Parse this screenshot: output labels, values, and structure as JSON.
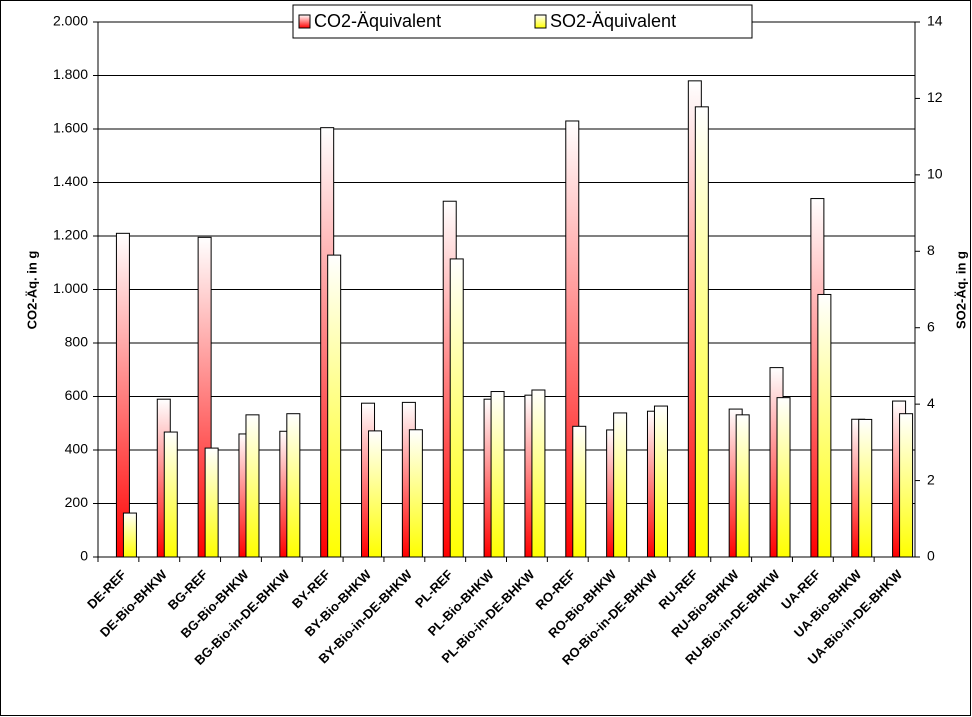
{
  "chart_data": {
    "type": "bar",
    "categories": [
      "DE-REF",
      "DE-Bio-BHKW",
      "BG-REF",
      "BG-Bio-BHKW",
      "BG-Bio-in-DE-BHKW",
      "BY-REF",
      "BY-Bio-BHKW",
      "BY-Bio-in-DE-BHKW",
      "PL-REF",
      "PL-Bio-BHKW",
      "PL-Bio-in-DE-BHKW",
      "RO-REF",
      "RO-Bio-BHKW",
      "RO-Bio-in-DE-BHKW",
      "RU-REF",
      "RU-Bio-BHKW",
      "RU-Bio-in-DE-BHKW",
      "UA-REF",
      "UA-Bio-BHKW",
      "UA-Bio-in-DE-BHKW"
    ],
    "series": [
      {
        "name": "CO2-Äquivalent",
        "color": "#ff0000",
        "values": [
          1210,
          590,
          1195,
          460,
          470,
          1605,
          575,
          578,
          1330,
          590,
          605,
          1630,
          475,
          545,
          1780,
          553,
          708,
          1340,
          515,
          583
        ]
      },
      {
        "name": "SO2-Äquivalent",
        "color": "#ffff00",
        "axis": "y2",
        "values": [
          1.15,
          3.27,
          2.85,
          3.72,
          3.75,
          7.9,
          3.3,
          3.33,
          7.8,
          4.33,
          4.37,
          3.42,
          3.77,
          3.95,
          11.78,
          3.72,
          4.17,
          6.87,
          3.6,
          3.75
        ]
      }
    ],
    "ylabel": "CO2-Äq. in g",
    "y2label": "SO2-Äq. in g",
    "ylim": [
      0,
      2000
    ],
    "yticks": [
      0,
      200,
      400,
      600,
      800,
      {
        "value": 1000,
        "label": "1.000"
      },
      {
        "value": 1200,
        "label": "1.200"
      },
      {
        "value": 1400,
        "label": "1.400"
      },
      {
        "value": 1600,
        "label": "1.600"
      },
      {
        "value": 1800,
        "label": "1.800"
      },
      {
        "value": 2000,
        "label": "2.000"
      }
    ],
    "y2lim": [
      0,
      14
    ],
    "y2ticks": [
      0,
      2,
      4,
      6,
      8,
      10,
      12,
      14
    ],
    "grid": true,
    "legend": "top"
  }
}
